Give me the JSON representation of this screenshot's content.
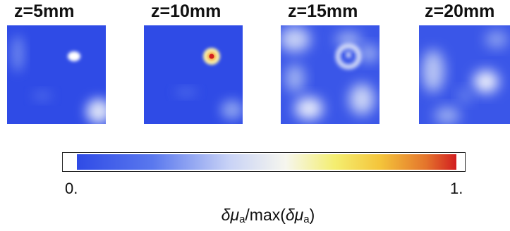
{
  "panels": [
    {
      "title": "z=5mm"
    },
    {
      "title": "z=10mm"
    },
    {
      "title": "z=15mm"
    },
    {
      "title": "z=20mm"
    }
  ],
  "colorbar": {
    "min_label": "0.",
    "max_label": "1.",
    "label": {
      "delta1": "δμ",
      "sub1": "a",
      "mid": "/max(",
      "delta2": "δμ",
      "sub2": "a",
      "end": ")"
    },
    "colors": [
      "#2f4be6",
      "#5a78ee",
      "#c8d2f6",
      "#f6f6ee",
      "#f4ee70",
      "#f4c43a",
      "#e4742c",
      "#d21e20"
    ]
  }
}
